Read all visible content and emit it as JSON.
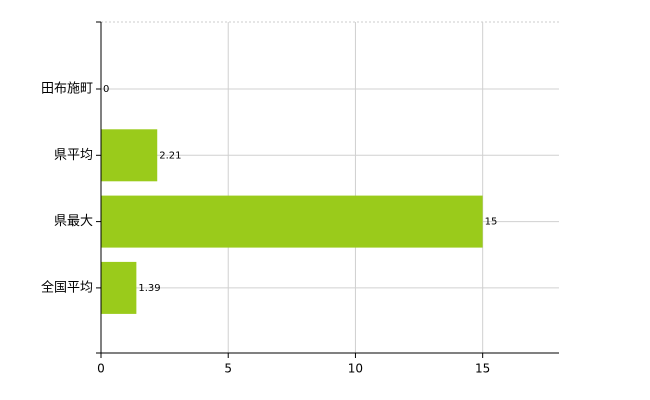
{
  "chart_data": {
    "type": "bar",
    "orientation": "horizontal",
    "categories": [
      "田布施町",
      "県平均",
      "県最大",
      "全国平均"
    ],
    "values": [
      0,
      2.21,
      15,
      1.39
    ],
    "color": "#9acb1b",
    "xlim": [
      0,
      18
    ],
    "xticks": [
      0,
      5,
      10,
      15
    ],
    "grid": true
  }
}
